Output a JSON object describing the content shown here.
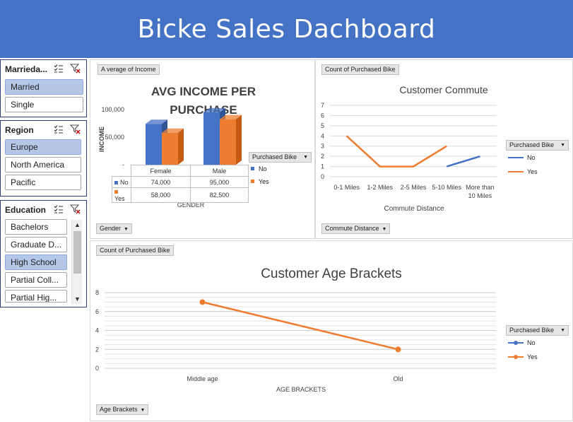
{
  "header": {
    "title": "Bicke Sales Dachboard"
  },
  "colors": {
    "banner": "#4472c4",
    "no": "#4472c4",
    "yes": "#ed7d31",
    "selected": "#b4c7e7"
  },
  "slicers": {
    "married": {
      "title": "Marrieda...",
      "items": [
        {
          "label": "Married",
          "selected": true
        },
        {
          "label": "Single",
          "selected": false
        }
      ]
    },
    "region": {
      "title": "Region",
      "items": [
        {
          "label": "Europe",
          "selected": true
        },
        {
          "label": "North America",
          "selected": false
        },
        {
          "label": "Pacific",
          "selected": false
        }
      ]
    },
    "education": {
      "title": "Education",
      "items": [
        {
          "label": "Bachelors",
          "selected": false
        },
        {
          "label": "Graduate D...",
          "selected": false
        },
        {
          "label": "High School",
          "selected": true
        },
        {
          "label": "Partial Coll...",
          "selected": false
        },
        {
          "label": "Partial Hig...",
          "selected": false
        }
      ]
    }
  },
  "income_chart": {
    "field_value": "A verage of Income",
    "field_axis": "Gender",
    "legend_header": "Purchased Bike",
    "legend": [
      "No",
      "Yes"
    ],
    "table_headers": [
      "Female",
      "Male"
    ],
    "table_rows": [
      {
        "label": "No",
        "values": [
          "74,000",
          "95,000"
        ]
      },
      {
        "label": "Yes",
        "values": [
          "58,000",
          "82,500"
        ]
      }
    ],
    "chart_data": {
      "type": "bar",
      "title": "AVG INCOME PER PURCHASE",
      "xlabel": "GENDER",
      "ylabel": "INCOME",
      "categories": [
        "Female",
        "Male"
      ],
      "series": [
        {
          "name": "No",
          "values": [
            74000,
            95000
          ]
        },
        {
          "name": "Yes",
          "values": [
            58000,
            82500
          ]
        }
      ],
      "ylim": [
        0,
        100000
      ],
      "ytick_labels": [
        "-",
        "50,000",
        "100,000"
      ]
    }
  },
  "commute_chart": {
    "field_value": "Count of Purchased Bike",
    "field_axis": "Commute Distance",
    "legend_header": "Purchased Bike",
    "legend": [
      "No",
      "Yes"
    ],
    "chart_data": {
      "type": "line",
      "title": "Customer Commute",
      "xlabel": "Commute Distance",
      "categories": [
        "0-1 Miles",
        "1-2 Miles",
        "2-5 Miles",
        "5-10 Miles",
        "More than 10 Miles"
      ],
      "category_lines": [
        [
          "0-1 Miles"
        ],
        [
          "1-2 Miles"
        ],
        [
          "2-5 Miles"
        ],
        [
          "5-10 Miles"
        ],
        [
          "More than",
          "10 Miles"
        ]
      ],
      "series": [
        {
          "name": "No",
          "values": [
            null,
            null,
            null,
            1,
            2
          ]
        },
        {
          "name": "Yes",
          "values": [
            4,
            1,
            1,
            3,
            null
          ]
        }
      ],
      "ylim": [
        0,
        7
      ],
      "yticks": [
        0,
        1,
        2,
        3,
        4,
        5,
        6,
        7
      ]
    }
  },
  "age_chart": {
    "field_value": "Count of Purchased Bike",
    "field_axis": "Age Brackets",
    "legend_header": "Purchased Bike",
    "legend": [
      "No",
      "Yes"
    ],
    "chart_data": {
      "type": "line",
      "title": "Customer Age Brackets",
      "xlabel": "AGE BRACKETS",
      "categories": [
        "Middle age",
        "Old"
      ],
      "series": [
        {
          "name": "No",
          "values": [
            null,
            null
          ]
        },
        {
          "name": "Yes",
          "values": [
            7,
            2
          ]
        }
      ],
      "ylim": [
        0,
        8
      ],
      "yticks": [
        0,
        2,
        4,
        6,
        8
      ]
    }
  }
}
